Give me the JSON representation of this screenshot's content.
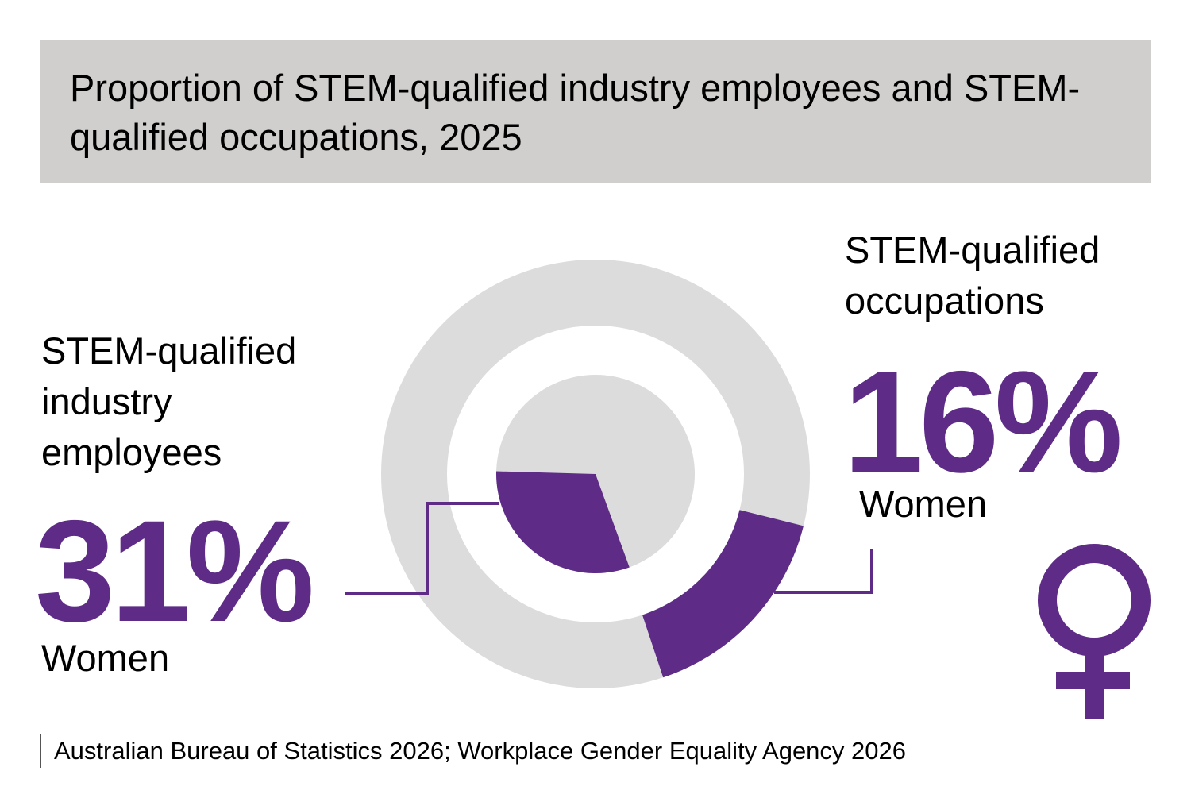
{
  "header": {
    "title": "Proportion of STEM-qualified industry employees and STEM-qualified occupations, 2025"
  },
  "chart_data": {
    "type": "pie",
    "title": "Proportion of STEM-qualified industry employees and STEM-qualified occupations, 2025",
    "series": [
      {
        "label_lines": [
          "STEM-qualified",
          "industry",
          "employees"
        ],
        "value": 31,
        "value_text": "31%",
        "category": "Women",
        "ring": "inner"
      },
      {
        "label_lines": [
          "STEM-qualified",
          "occupations"
        ],
        "value": 16,
        "value_text": "16%",
        "category": "Women",
        "ring": "outer"
      }
    ],
    "colors": {
      "highlight": "#5e2c87",
      "remainder": "#dddcdc"
    }
  },
  "footer": {
    "source": "Australian Bureau of Statistics 2026; Workplace Gender Equality Agency 2026"
  },
  "icons": {
    "female_symbol": "female-symbol-icon"
  }
}
